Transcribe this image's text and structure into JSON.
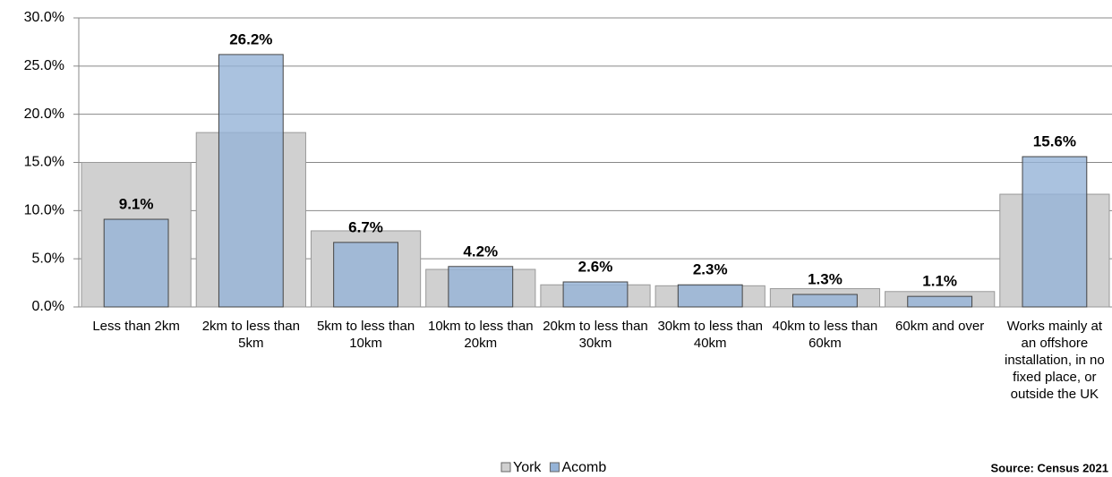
{
  "chart_data": {
    "type": "bar",
    "categories": [
      "Less than 2km",
      "2km to less than 5km",
      "5km to less than 10km",
      "10km to less than 20km",
      "20km to less than 30km",
      "30km to less than 40km",
      "40km to less than 60km",
      "60km and over",
      "Works mainly at an offshore installation, in no fixed place, or outside the UK"
    ],
    "series": [
      {
        "name": "York",
        "color": "#d0d0d0",
        "values": [
          15.0,
          18.1,
          7.9,
          3.9,
          2.3,
          2.2,
          1.9,
          1.6,
          11.7
        ]
      },
      {
        "name": "Acomb",
        "color": "#95b3d7",
        "values": [
          9.1,
          26.2,
          6.7,
          4.2,
          2.6,
          2.3,
          1.3,
          1.1,
          15.6
        ],
        "value_labels": [
          "9.1%",
          "26.2%",
          "6.7%",
          "4.2%",
          "2.6%",
          "2.3%",
          "1.3%",
          "1.1%",
          "15.6%"
        ]
      }
    ],
    "ylim": [
      0,
      30
    ],
    "yticks": [
      {
        "value": 0,
        "label": "0.0%"
      },
      {
        "value": 5,
        "label": "5.0%"
      },
      {
        "value": 10,
        "label": "10.0%"
      },
      {
        "value": 15,
        "label": "15.0%"
      },
      {
        "value": 20,
        "label": "20.0%"
      },
      {
        "value": 25,
        "label": "25.0%"
      },
      {
        "value": 30,
        "label": "30.0%"
      }
    ],
    "grid": true,
    "legend": "bottom",
    "source": "Source: Census 2021"
  }
}
